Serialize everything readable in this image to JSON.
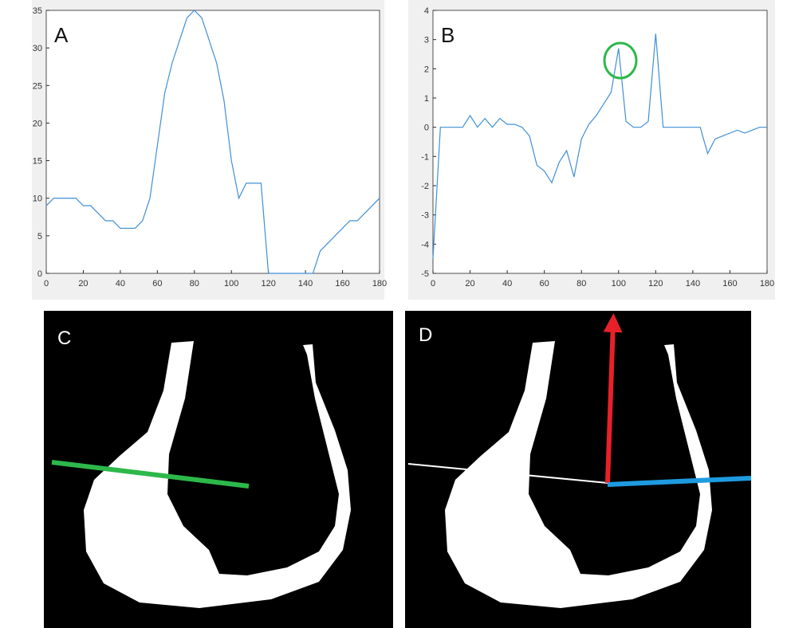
{
  "chart_data": [
    {
      "type": "line",
      "label": "A",
      "x": [
        0,
        4,
        8,
        12,
        16,
        20,
        24,
        28,
        32,
        36,
        40,
        44,
        48,
        52,
        56,
        60,
        64,
        68,
        72,
        76,
        80,
        84,
        88,
        92,
        96,
        100,
        104,
        108,
        112,
        116,
        120,
        124,
        128,
        132,
        136,
        140,
        144,
        148,
        152,
        156,
        160,
        164,
        168,
        172,
        176,
        180
      ],
      "series": [
        {
          "color": "#3f8fd6",
          "values": [
            9,
            10,
            10,
            10,
            10,
            9,
            9,
            8,
            7,
            7,
            6,
            6,
            6,
            7,
            10,
            17,
            24,
            28,
            31,
            34,
            35,
            34,
            31,
            28,
            23,
            15,
            10,
            12,
            12,
            12,
            0,
            0,
            0,
            0,
            0,
            0,
            0,
            3,
            4,
            5,
            6,
            7,
            7,
            8,
            9,
            10
          ]
        }
      ],
      "xlim": [
        0,
        180
      ],
      "xticks": [
        0,
        20,
        40,
        60,
        80,
        100,
        120,
        140,
        160,
        180
      ],
      "ylim": [
        0,
        35
      ],
      "yticks": [
        0,
        5,
        10,
        15,
        20,
        25,
        30,
        35
      ],
      "grid": false
    },
    {
      "type": "line",
      "label": "B",
      "x": [
        0,
        4,
        8,
        12,
        16,
        20,
        24,
        28,
        32,
        36,
        40,
        44,
        48,
        52,
        56,
        60,
        64,
        68,
        72,
        76,
        80,
        84,
        88,
        92,
        96,
        100,
        104,
        108,
        112,
        116,
        120,
        124,
        128,
        132,
        136,
        140,
        144,
        148,
        152,
        156,
        160,
        164,
        168,
        172,
        176,
        180
      ],
      "series": [
        {
          "color": "#3f8fd6",
          "values": [
            -4.5,
            0,
            0,
            0,
            0,
            0.4,
            0,
            0.3,
            0,
            0.3,
            0.1,
            0.1,
            0,
            -0.3,
            -1.3,
            -1.5,
            -1.9,
            -1.2,
            -0.8,
            -1.7,
            -0.4,
            0.1,
            0.4,
            0.8,
            1.2,
            2.7,
            0.2,
            0,
            0,
            0.2,
            3.2,
            0,
            0,
            0,
            0,
            0,
            0,
            -0.9,
            -0.4,
            -0.3,
            -0.2,
            -0.1,
            -0.2,
            -0.1,
            0,
            0
          ]
        }
      ],
      "xlim": [
        0,
        180
      ],
      "xticks": [
        0,
        20,
        40,
        60,
        80,
        100,
        120,
        140,
        160,
        180
      ],
      "ylim": [
        -5,
        4
      ],
      "yticks": [
        -5,
        -4,
        -3,
        -2,
        -1,
        0,
        1,
        2,
        3,
        4
      ],
      "grid": false
    }
  ],
  "images": [
    {
      "label": "C"
    },
    {
      "label": "D"
    }
  ]
}
